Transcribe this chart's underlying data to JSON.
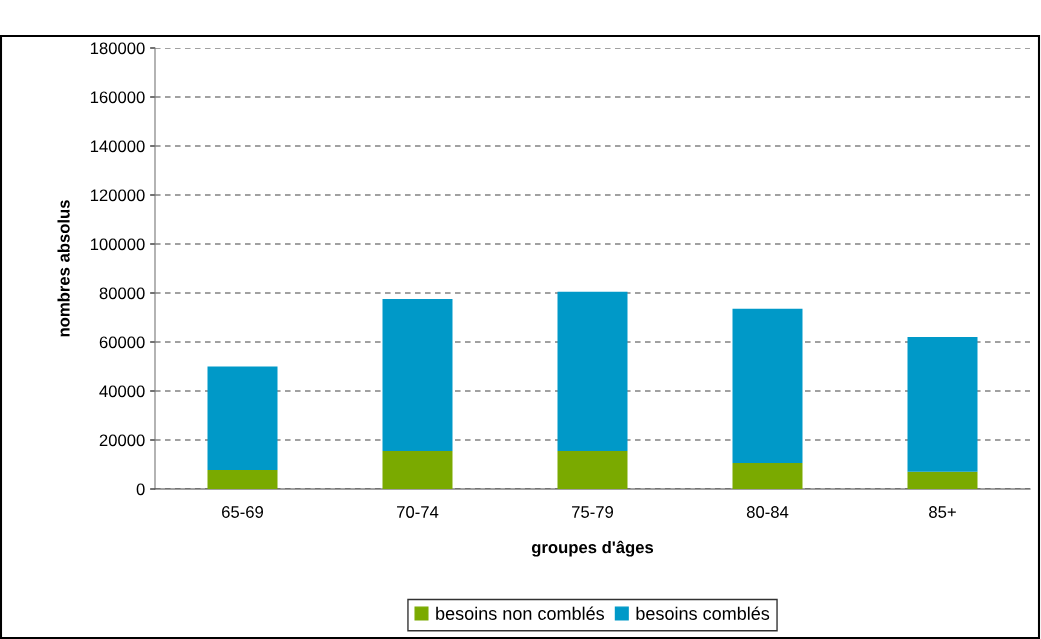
{
  "chart_data": {
    "type": "bar",
    "stacked": true,
    "xlabel": "groupes d'âges",
    "ylabel": "nombres absolus",
    "categories": [
      "65-69",
      "70-74",
      "75-79",
      "80-84",
      "85+"
    ],
    "series": [
      {
        "name": "besoins non comblés",
        "color": "#7aaa00",
        "values": [
          7800,
          15500,
          15500,
          10600,
          7000
        ]
      },
      {
        "name": "besoins comblés",
        "color": "#0099c8",
        "values": [
          42200,
          62000,
          65000,
          63000,
          55000
        ]
      }
    ],
    "ylim": [
      0,
      180000
    ],
    "yticks": [
      0,
      20000,
      40000,
      60000,
      80000,
      100000,
      120000,
      140000,
      160000,
      180000
    ],
    "grid": "y",
    "legend": "bottom"
  }
}
